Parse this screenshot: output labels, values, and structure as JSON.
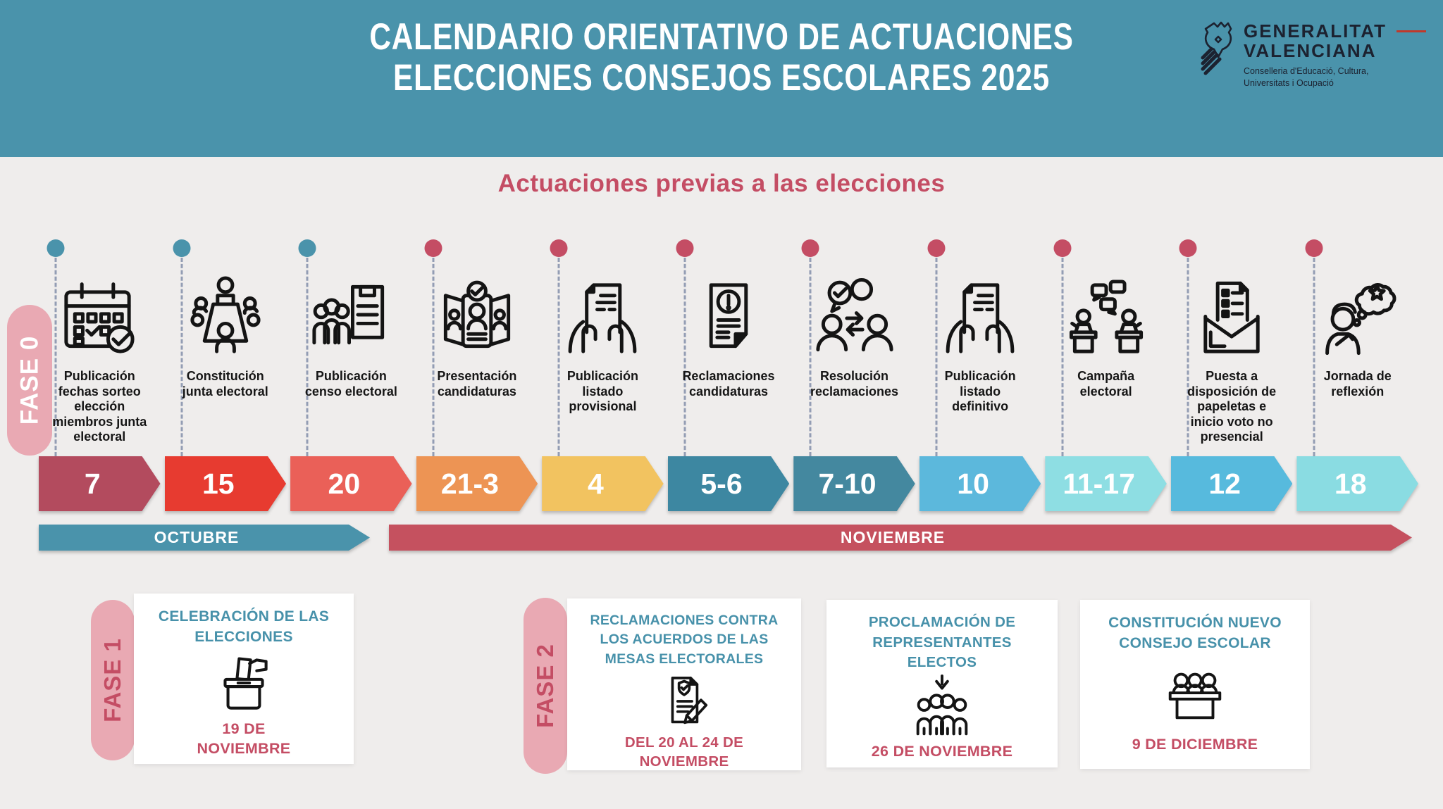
{
  "header": {
    "title_line1": "CALENDARIO ORIENTATIVO DE ACTUACIONES",
    "title_line2": "ELECCIONES CONSEJOS ESCOLARES 2025"
  },
  "logo": {
    "name_line1": "GENERALITAT",
    "name_line2": "VALENCIANA",
    "dept_line1": "Conselleria d'Educació, Cultura,",
    "dept_line2": "Universitats i Ocupació"
  },
  "section_title": "Actuaciones previas a las elecciones",
  "phase0_label": "FASE 0",
  "timeline": [
    {
      "label": "Publicación fechas sorteo elección miembros junta electoral",
      "date": "7",
      "dot_color": "#4a93ab",
      "arrow_color": "#b34b5e",
      "icon": "calendar-check-icon"
    },
    {
      "label": "Constitución junta electoral",
      "date": "15",
      "dot_color": "#4a93ab",
      "arrow_color": "#e73b30",
      "icon": "meeting-table-icon"
    },
    {
      "label": "Publicación censo electoral",
      "date": "20",
      "dot_color": "#4a93ab",
      "arrow_color": "#ea6058",
      "icon": "census-group-icon"
    },
    {
      "label": "Presentación candidaturas",
      "date": "21-3",
      "dot_color": "#c44d64",
      "arrow_color": "#ed9454",
      "icon": "candidate-cards-icon"
    },
    {
      "label": "Publicación listado provisional",
      "date": "4",
      "dot_color": "#c44d64",
      "arrow_color": "#f2c360",
      "icon": "hands-document-icon"
    },
    {
      "label": "Reclamaciones candidaturas",
      "date": "5-6",
      "dot_color": "#c44d64",
      "arrow_color": "#3d87a1",
      "icon": "document-alert-icon"
    },
    {
      "label": "Resolución reclamaciones",
      "date": "7-10",
      "dot_color": "#c44d64",
      "arrow_color": "#44889f",
      "icon": "people-exchange-icon"
    },
    {
      "label": "Publicación listado definitivo",
      "date": "10",
      "dot_color": "#c44d64",
      "arrow_color": "#5cb8dc",
      "icon": "hands-document-icon"
    },
    {
      "label": "Campaña electoral",
      "date": "11-17",
      "dot_color": "#c44d64",
      "arrow_color": "#8edee3",
      "icon": "debate-podiums-icon"
    },
    {
      "label": "Puesta a disposición de papeletas e inicio voto no presencial",
      "date": "12",
      "dot_color": "#c44d64",
      "arrow_color": "#57badd",
      "icon": "envelope-ballot-icon"
    },
    {
      "label": "Jornada de reflexión",
      "date": "18",
      "dot_color": "#c44d64",
      "arrow_color": "#8adce2",
      "icon": "thinking-person-icon"
    }
  ],
  "months": [
    {
      "label": "OCTUBRE",
      "color": "#4a93ab"
    },
    {
      "label": "NOVIEMBRE",
      "color": "#c5515f"
    }
  ],
  "phases": [
    {
      "label": "FASE 1",
      "title": "CELEBRACIÓN DE LAS ELECCIONES",
      "date": "19 DE NOVIEMBRE",
      "icon": "ballot-box-icon"
    },
    {
      "label": "FASE 2",
      "title": "RECLAMACIONES CONTRA LOS ACUERDOS DE LAS MESAS ELECTORALES",
      "date": "DEL 20 AL 24 DE NOVIEMBRE",
      "icon": "claim-document-icon"
    },
    {
      "title": "PROCLAMACIÓN DE REPRESENTANTES ELECTOS",
      "date": "26 DE NOVIEMBRE",
      "icon": "elected-group-icon"
    },
    {
      "title": "CONSTITUCIÓN NUEVO CONSEJO ESCOLAR",
      "date": "9 DE DICIEMBRE",
      "icon": "council-desk-icon"
    }
  ],
  "colors": {
    "teal": "#4a93ab",
    "crimson": "#c44d64",
    "pink": "#e9a9b3",
    "background": "#efedec",
    "card": "#ffffff",
    "card_title_teal": "#4791aa",
    "ink": "#161616",
    "logo_dash_red": "#c0392b"
  }
}
